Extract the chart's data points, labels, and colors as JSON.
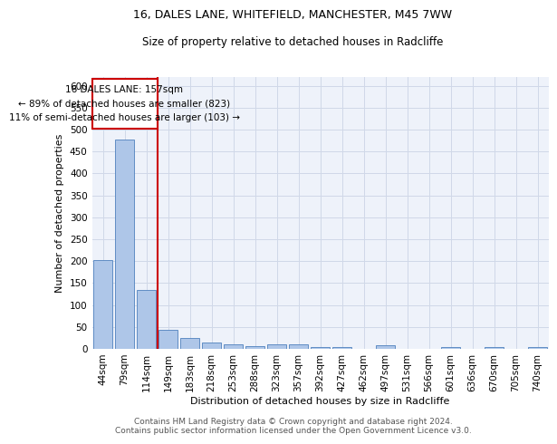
{
  "title_line1": "16, DALES LANE, WHITEFIELD, MANCHESTER, M45 7WW",
  "title_line2": "Size of property relative to detached houses in Radcliffe",
  "xlabel": "Distribution of detached houses by size in Radcliffe",
  "ylabel": "Number of detached properties",
  "footer_line1": "Contains HM Land Registry data © Crown copyright and database right 2024.",
  "footer_line2": "Contains public sector information licensed under the Open Government Licence v3.0.",
  "annotation_line1": "16 DALES LANE: 157sqm",
  "annotation_line2": "← 89% of detached houses are smaller (823)",
  "annotation_line3": "11% of semi-detached houses are larger (103) →",
  "bar_color": "#aec6e8",
  "bar_edge_color": "#4f81bd",
  "vline_color": "#cc0000",
  "annotation_box_edgecolor": "#cc0000",
  "annotation_box_facecolor": "#ffffff",
  "grid_color": "#d0d8e8",
  "background_color": "#eef2fa",
  "categories": [
    "44sqm",
    "79sqm",
    "114sqm",
    "149sqm",
    "183sqm",
    "218sqm",
    "253sqm",
    "288sqm",
    "323sqm",
    "357sqm",
    "392sqm",
    "427sqm",
    "462sqm",
    "497sqm",
    "531sqm",
    "566sqm",
    "601sqm",
    "636sqm",
    "670sqm",
    "705sqm",
    "740sqm"
  ],
  "values": [
    203,
    478,
    135,
    43,
    25,
    15,
    11,
    6,
    10,
    10,
    5,
    5,
    0,
    8,
    0,
    0,
    5,
    0,
    5,
    0,
    5
  ],
  "ylim": [
    0,
    620
  ],
  "yticks": [
    0,
    50,
    100,
    150,
    200,
    250,
    300,
    350,
    400,
    450,
    500,
    550,
    600
  ],
  "vline_pos": 2.5,
  "title_fontsize": 9,
  "subtitle_fontsize": 8.5,
  "xlabel_fontsize": 8,
  "ylabel_fontsize": 8,
  "tick_fontsize": 7.5,
  "annotation_fontsize": 7.5,
  "footer_fontsize": 6.5
}
